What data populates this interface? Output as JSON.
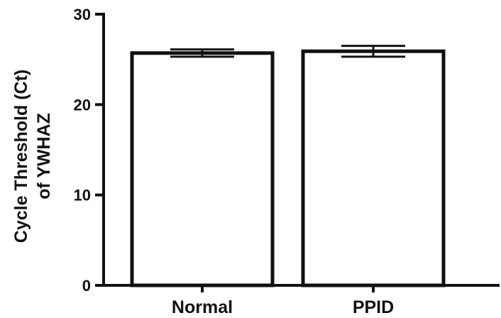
{
  "chart_data": {
    "type": "bar",
    "title": "",
    "xlabel": "",
    "ylabel": [
      "Cycle Threshold (Ct)",
      "of YWHAZ"
    ],
    "categories": [
      "Normal",
      "PPID"
    ],
    "values": [
      25.7,
      25.9
    ],
    "error": [
      0.4,
      0.6
    ],
    "ylim": [
      0,
      30
    ],
    "yticks": [
      0,
      10,
      20,
      30
    ],
    "yticks_labels": [
      "0",
      "10",
      "20",
      "30"
    ],
    "grid": false,
    "legend": "none",
    "colors": {
      "bar_fill": "#ffffff",
      "stroke": "#111111"
    }
  }
}
